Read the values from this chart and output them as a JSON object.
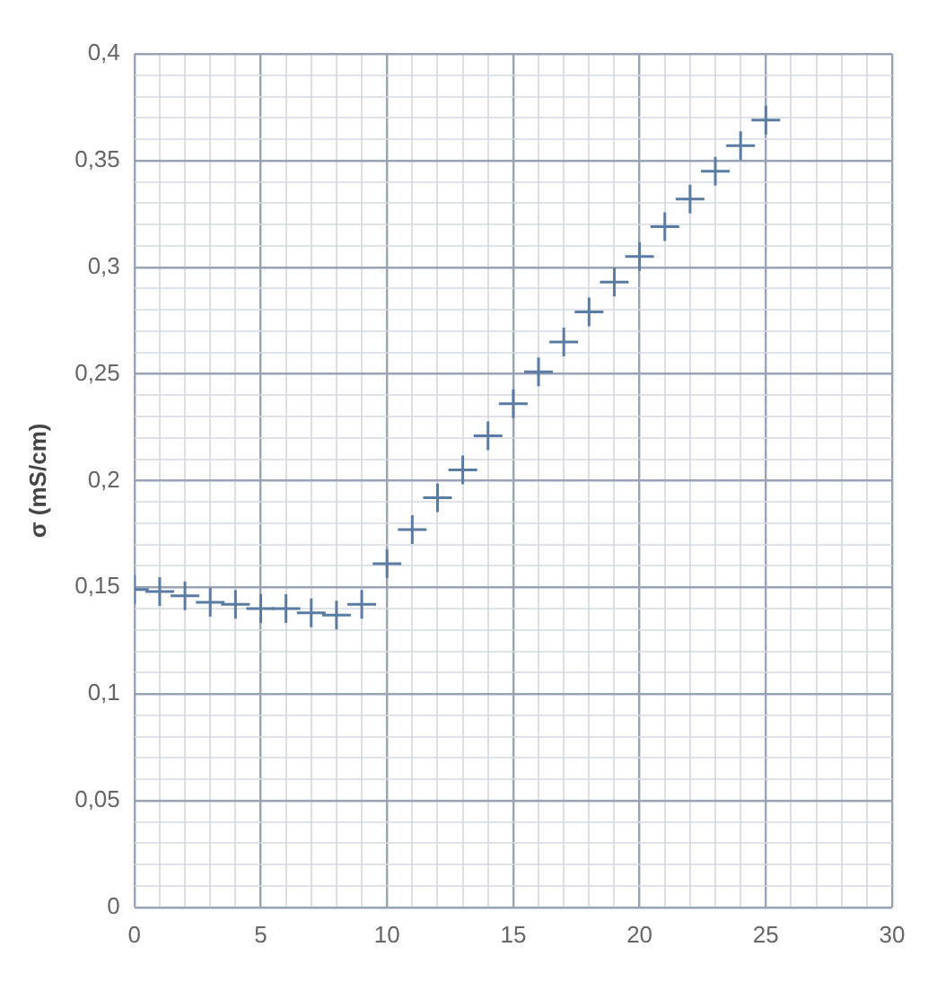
{
  "chart_data": {
    "type": "scatter",
    "ylabel": "σ (mS/cm)",
    "x": [
      0,
      1,
      2,
      3,
      4,
      5,
      6,
      7,
      8,
      9,
      10,
      11,
      12,
      13,
      14,
      15,
      16,
      17,
      18,
      19,
      20,
      21,
      22,
      23,
      24,
      25
    ],
    "series": [
      {
        "color": "#5a7ca3",
        "values": [
          0.149,
          0.148,
          0.146,
          0.143,
          0.142,
          0.14,
          0.14,
          0.138,
          0.137,
          0.142,
          0.161,
          0.177,
          0.192,
          0.205,
          0.221,
          0.236,
          0.251,
          0.265,
          0.279,
          0.293,
          0.305,
          0.319,
          0.332,
          0.345,
          0.357,
          0.369
        ]
      }
    ],
    "xlim": [
      0,
      30
    ],
    "xticks": [
      0,
      {
        "value": 1,
        "label": null
      },
      {
        "value": 2,
        "label": null
      },
      {
        "value": 3,
        "label": null
      },
      {
        "value": 4,
        "label": null
      },
      5,
      {
        "value": 6,
        "label": null
      },
      {
        "value": 7,
        "label": null
      },
      {
        "value": 8,
        "label": null
      },
      {
        "value": 9,
        "label": null
      },
      10,
      {
        "value": 11,
        "label": null
      },
      {
        "value": 12,
        "label": null
      },
      {
        "value": 13,
        "label": null
      },
      {
        "value": 14,
        "label": null
      },
      15,
      {
        "value": 16,
        "label": null
      },
      {
        "value": 17,
        "label": null
      },
      {
        "value": 18,
        "label": null
      },
      {
        "value": 19,
        "label": null
      },
      20,
      {
        "value": 21,
        "label": null
      },
      {
        "value": 22,
        "label": null
      },
      {
        "value": 23,
        "label": null
      },
      {
        "value": 24,
        "label": null
      },
      25,
      {
        "value": 26,
        "label": null
      },
      {
        "value": 27,
        "label": null
      },
      {
        "value": 28,
        "label": null
      },
      {
        "value": 29,
        "label": null
      },
      30
    ],
    "ylim": [
      0,
      0.4
    ],
    "yticks": [
      0,
      {
        "value": 0.01,
        "label": null
      },
      {
        "value": 0.02,
        "label": null
      },
      {
        "value": 0.03,
        "label": null
      },
      {
        "value": 0.04,
        "label": null
      },
      {
        "value": 0.05,
        "label": "0,05"
      },
      {
        "value": 0.06,
        "label": null
      },
      {
        "value": 0.07,
        "label": null
      },
      {
        "value": 0.08,
        "label": null
      },
      {
        "value": 0.09,
        "label": null
      },
      {
        "value": 0.1,
        "label": "0,1"
      },
      {
        "value": 0.11,
        "label": null
      },
      {
        "value": 0.12,
        "label": null
      },
      {
        "value": 0.13,
        "label": null
      },
      {
        "value": 0.14,
        "label": null
      },
      {
        "value": 0.15,
        "label": "0,15"
      },
      {
        "value": 0.16,
        "label": null
      },
      {
        "value": 0.17,
        "label": null
      },
      {
        "value": 0.18,
        "label": null
      },
      {
        "value": 0.19,
        "label": null
      },
      {
        "value": 0.2,
        "label": "0,2"
      },
      {
        "value": 0.21,
        "label": null
      },
      {
        "value": 0.22,
        "label": null
      },
      {
        "value": 0.23,
        "label": null
      },
      {
        "value": 0.24,
        "label": null
      },
      {
        "value": 0.25,
        "label": "0,25"
      },
      {
        "value": 0.26,
        "label": null
      },
      {
        "value": 0.27,
        "label": null
      },
      {
        "value": 0.28,
        "label": null
      },
      {
        "value": 0.29,
        "label": null
      },
      {
        "value": 0.3,
        "label": "0,3"
      },
      {
        "value": 0.31,
        "label": null
      },
      {
        "value": 0.32,
        "label": null
      },
      {
        "value": 0.33,
        "label": null
      },
      {
        "value": 0.34,
        "label": null
      },
      {
        "value": 0.35,
        "label": "0,35"
      },
      {
        "value": 0.36,
        "label": null
      },
      {
        "value": 0.37,
        "label": null
      },
      {
        "value": 0.38,
        "label": null
      },
      {
        "value": 0.39,
        "label": null
      },
      {
        "value": 0.4,
        "label": "0,4"
      }
    ],
    "grid": true,
    "marker": "cross",
    "legend": false
  }
}
